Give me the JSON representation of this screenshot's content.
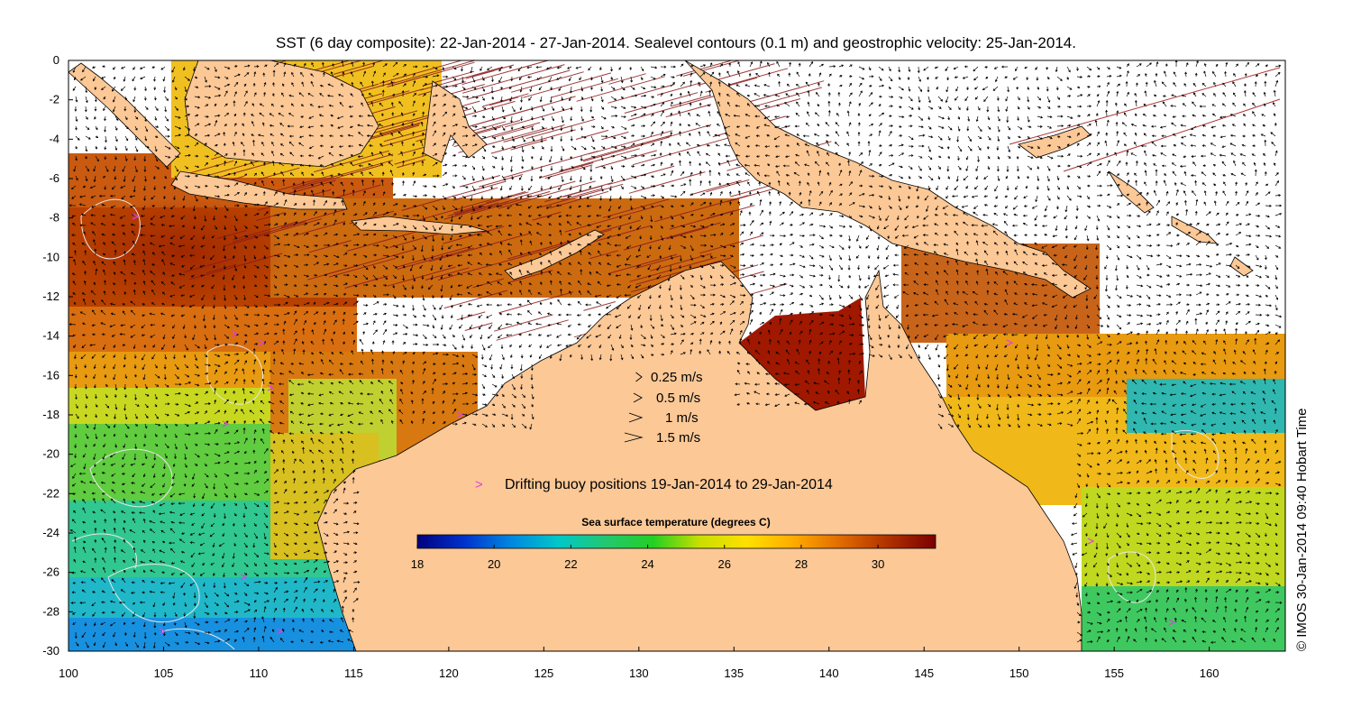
{
  "title": "SST (6 day composite): 22-Jan-2014 - 27-Jan-2014. Sealevel contours (0.1 m) and geostrophic velocity: 25-Jan-2014.",
  "credit": "© IMOS 30-Jan-2014 09:40 Hobart Time",
  "axes": {
    "lon_ticks": [
      "100",
      "105",
      "110",
      "115",
      "120",
      "125",
      "130",
      "135",
      "140",
      "145",
      "150",
      "155",
      "160"
    ],
    "lat_ticks": [
      "0",
      "-2",
      "-4",
      "-6",
      "-8",
      "-10",
      "-12",
      "-14",
      "-16",
      "-18",
      "-20",
      "-22",
      "-24",
      "-26",
      "-28",
      "-30"
    ],
    "lon_range": [
      100,
      164
    ],
    "lat_range": [
      -30,
      0
    ]
  },
  "velocity_legend": {
    "items": [
      {
        "label": "0.25 m/s",
        "speed": 0.25
      },
      {
        "label": "0.5 m/s",
        "speed": 0.5
      },
      {
        "label": "1 m/s",
        "speed": 1
      },
      {
        "label": "1.5 m/s",
        "speed": 1.5
      }
    ]
  },
  "buoy_legend": {
    "symbol": ">",
    "label": "Drifting buoy positions 19-Jan-2014 to 29-Jan-2014",
    "color": "#e040e0"
  },
  "colorbar": {
    "title": "Sea surface temperature (degrees C)",
    "range": [
      18,
      31.5
    ],
    "ticks": [
      "18",
      "20",
      "22",
      "24",
      "26",
      "28",
      "30"
    ],
    "colors": [
      "#00007f",
      "#0033cc",
      "#0088e0",
      "#00c8c8",
      "#22c870",
      "#22d022",
      "#c8e000",
      "#ffe000",
      "#ffaa00",
      "#e06a00",
      "#b03000",
      "#7a0000"
    ]
  },
  "colors": {
    "land": "#fbc896",
    "sst_hot": "#b04000",
    "sst_warm": "#e07a10",
    "sst_mid": "#f0b010",
    "sst_cool": "#4cd040",
    "sst_cold": "#18b0d0",
    "contour": "#e8e8e8",
    "arrow": "#000000",
    "noise": "#8b1a1a"
  }
}
